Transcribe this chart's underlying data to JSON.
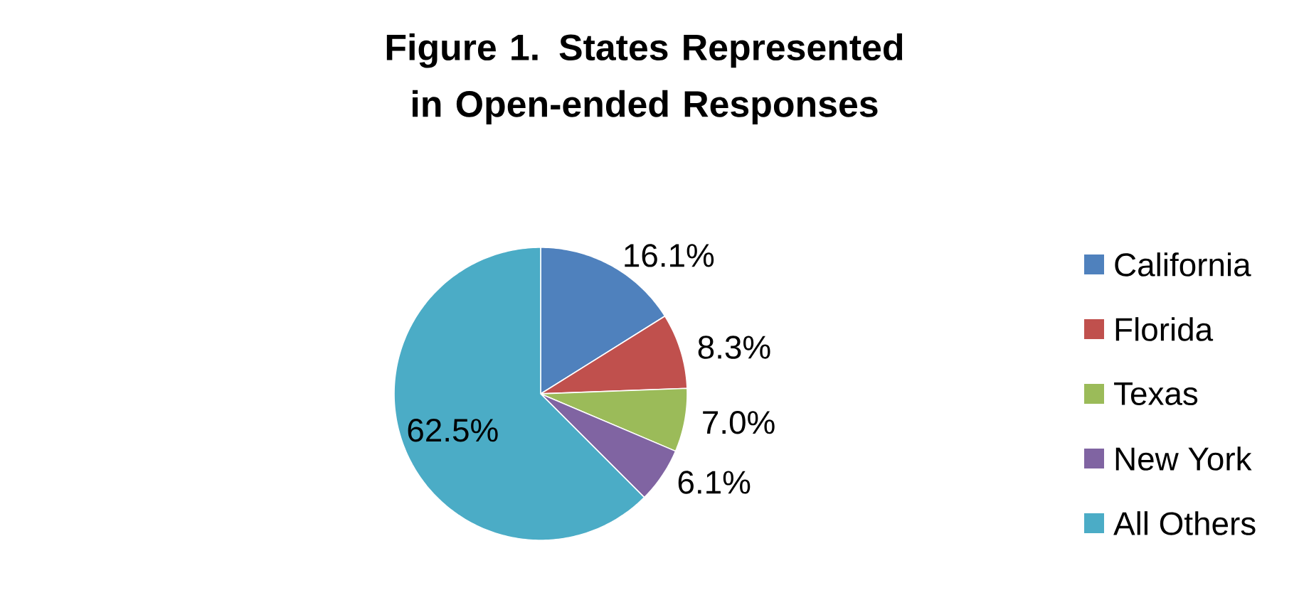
{
  "chart_data": {
    "type": "pie",
    "title": "Figure 1. States Represented in Open-ended Responses",
    "categories": [
      "California",
      "Florida",
      "Texas",
      "New York",
      "All Others"
    ],
    "values": [
      16.1,
      8.3,
      7.0,
      6.1,
      62.5
    ],
    "value_labels": [
      "16.1%",
      "8.3%",
      "7.0%",
      "6.1%",
      "62.5%"
    ],
    "colors": [
      "#4f81bd",
      "#c0504d",
      "#9bbb59",
      "#8064a2",
      "#4bacc6"
    ],
    "legend": "right"
  }
}
